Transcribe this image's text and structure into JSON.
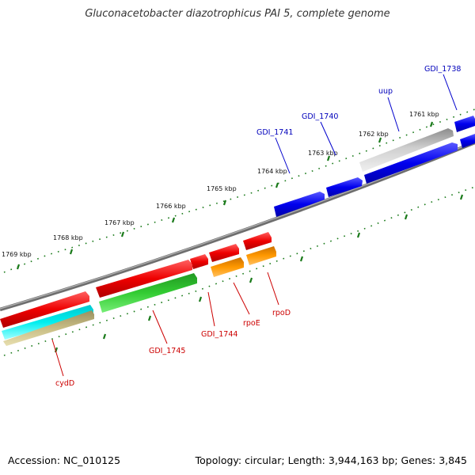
{
  "title": "Gluconacetobacter diazotrophicus PAI 5, complete genome",
  "footer": {
    "accession": "Accession: NC_010125",
    "summary": "Topology: circular; Length: 3,944,163 bp; Genes: 3,845"
  },
  "ticks": [
    "1761 kbp",
    "1762 kbp",
    "1763 kbp",
    "1764 kbp",
    "1765 kbp",
    "1766 kbp",
    "1767 kbp",
    "1768 kbp",
    "1769 kbp"
  ],
  "genes_forward": [
    "GDI_1738",
    "uup",
    "GDI_1740",
    "GDI_1741"
  ],
  "genes_reverse": [
    "rpoD",
    "rpoE",
    "GDI_1744",
    "GDI_1745",
    "cydD"
  ],
  "colors": {
    "forward_cds": "#0000ee",
    "reverse_cds": "#ee0000",
    "gray_feature": "#b0b0b0",
    "backbone": "#7a7a7a",
    "gc_dots": "#1a7a1a",
    "track_green": "#33cc33",
    "track_orange": "#ff9900",
    "track_cyan": "#00e5ee",
    "track_khaki": "#c8bd84",
    "forward_label": "#0000bb",
    "reverse_label": "#cc0000"
  }
}
